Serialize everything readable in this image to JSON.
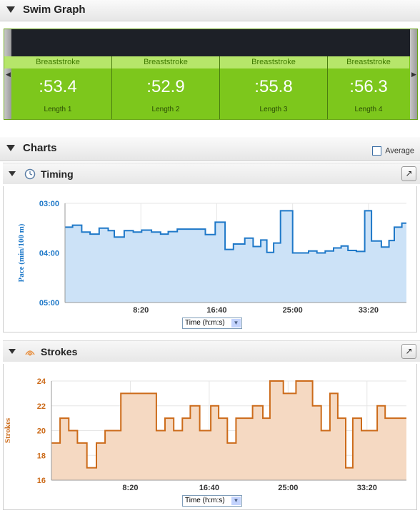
{
  "swim_graph": {
    "title": "Swim Graph",
    "lengths": [
      {
        "stroke": "Breaststroke",
        "time": ":53.4",
        "label": "Length 1"
      },
      {
        "stroke": "Breaststroke",
        "time": ":52.9",
        "label": "Length 2"
      },
      {
        "stroke": "Breaststroke",
        "time": ":55.8",
        "label": "Length 3"
      },
      {
        "stroke": "Breaststroke",
        "time": ":56.3",
        "label": "Length 4"
      }
    ]
  },
  "charts": {
    "title": "Charts",
    "average_label": "Average",
    "timing_title": "Timing",
    "strokes_title": "Strokes",
    "time_select_label": "Time (h:m:s)"
  },
  "chart_data": [
    {
      "type": "area",
      "title": "",
      "xlabel": "",
      "ylabel": "Pace (min/100 m)",
      "y_ticks": [
        "03:00",
        "04:00",
        "05:00"
      ],
      "y_tick_values": [
        3,
        4,
        5
      ],
      "y_reversed": true,
      "ylim": [
        3,
        5
      ],
      "xlim": [
        "0:00",
        "37:30"
      ],
      "x_ticks": [
        "8:20",
        "16:40",
        "25:00",
        "33:20"
      ],
      "color": "#1e78c8",
      "fill": "#cce2f7",
      "x": [
        "0:00",
        "0:50",
        "1:50",
        "2:45",
        "3:45",
        "4:45",
        "5:25",
        "6:30",
        "7:30",
        "8:25",
        "9:30",
        "10:30",
        "11:20",
        "12:20",
        "15:25",
        "16:30",
        "17:35",
        "18:30",
        "19:45",
        "20:40",
        "21:30",
        "22:10",
        "22:55",
        "23:40",
        "25:00",
        "26:45",
        "27:40",
        "28:35",
        "29:30",
        "30:20",
        "31:05",
        "32:00",
        "32:55",
        "33:40",
        "34:45",
        "35:35",
        "36:10",
        "37:00"
      ],
      "y": [
        3.48,
        3.44,
        3.58,
        3.62,
        3.5,
        3.55,
        3.68,
        3.55,
        3.58,
        3.54,
        3.58,
        3.62,
        3.57,
        3.52,
        3.63,
        3.38,
        3.93,
        3.82,
        3.7,
        3.87,
        3.74,
        3.99,
        3.8,
        3.15,
        4.0,
        3.96,
        4.0,
        3.96,
        3.9,
        3.86,
        3.95,
        3.97,
        3.15,
        3.76,
        3.88,
        3.75,
        3.48,
        3.4
      ]
    },
    {
      "type": "area",
      "title": "",
      "xlabel": "",
      "ylabel": "Strokes",
      "y_ticks": [
        "16",
        "18",
        "20",
        "22",
        "24"
      ],
      "ylim": [
        16,
        24
      ],
      "xlim": [
        "0:00",
        "37:30"
      ],
      "x_ticks": [
        "8:20",
        "16:40",
        "25:00",
        "33:20"
      ],
      "color": "#cc6b1a",
      "fill": "#f5d9c2",
      "x": [
        "0:00",
        "0:55",
        "1:50",
        "2:45",
        "3:45",
        "4:45",
        "5:40",
        "7:20",
        "11:05",
        "12:00",
        "12:55",
        "13:50",
        "14:40",
        "15:40",
        "16:50",
        "17:40",
        "18:35",
        "19:30",
        "20:15",
        "21:15",
        "22:20",
        "23:05",
        "24:30",
        "25:50",
        "27:35",
        "28:30",
        "29:25",
        "30:15",
        "31:05",
        "31:50",
        "32:45",
        "33:35",
        "34:25",
        "35:15",
        "36:10",
        "36:55"
      ],
      "y": [
        19,
        21,
        20,
        19,
        17,
        19,
        20,
        23,
        20,
        21,
        20,
        21,
        22,
        20,
        22,
        21,
        19,
        21,
        21,
        22,
        21,
        24,
        23,
        24,
        22,
        20,
        23,
        21,
        17,
        21,
        20,
        20,
        22,
        21,
        21,
        21
      ]
    }
  ]
}
